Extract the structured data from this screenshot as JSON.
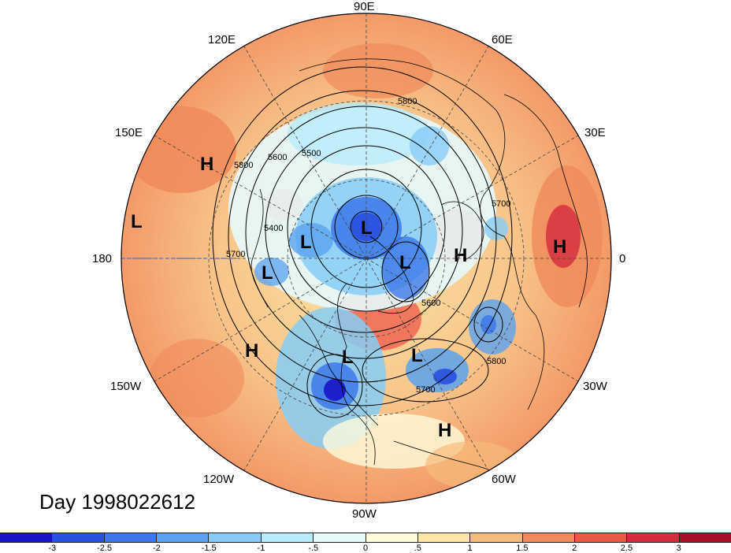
{
  "day_label": "Day 1998022612",
  "longitude_labels": {
    "lon_90e": "90E",
    "lon_60e": "60E",
    "lon_120e": "120E",
    "lon_150e": "150E",
    "lon_30e": "30E",
    "lon_180": "180",
    "lon_0": "0",
    "lon_150w": "150W",
    "lon_30w": "30W",
    "lon_120w": "120W",
    "lon_60w": "60W",
    "lon_90w": "90W"
  },
  "pressure_centers": [
    {
      "type": "H",
      "name": "high-east-siberia"
    },
    {
      "type": "L",
      "name": "low-dateline"
    },
    {
      "type": "L",
      "name": "low-arctic-north"
    },
    {
      "type": "L",
      "name": "low-bering"
    },
    {
      "type": "L",
      "name": "low-alaska"
    },
    {
      "type": "L",
      "name": "low-greenland"
    },
    {
      "type": "H",
      "name": "high-scandinavia"
    },
    {
      "type": "H",
      "name": "high-africa"
    },
    {
      "type": "H",
      "name": "high-pacific"
    },
    {
      "type": "L",
      "name": "low-central-us"
    },
    {
      "type": "L",
      "name": "low-atlantic"
    },
    {
      "type": "H",
      "name": "high-subtropical-atlantic"
    }
  ],
  "contour_labels": [
    "5800",
    "5500",
    "5600",
    "5400",
    "5700",
    "5800",
    "5700",
    "5600",
    "5800",
    "5700"
  ],
  "colorbar": {
    "colors": [
      "#1a14c8",
      "#2a50e0",
      "#3c78ea",
      "#5aa2ef",
      "#86ccf6",
      "#b6ecfb",
      "#e6fafd",
      "#fefbdc",
      "#fbe6a6",
      "#f6ba7a",
      "#f08a5a",
      "#ec5848",
      "#d42c3c",
      "#a8102c"
    ],
    "ticks": [
      "-3",
      "-2.5",
      "-2",
      "-1.5",
      "-1",
      "-.5",
      "0",
      ".5",
      "1",
      "1.5",
      "2",
      "2.5",
      "3"
    ]
  }
}
